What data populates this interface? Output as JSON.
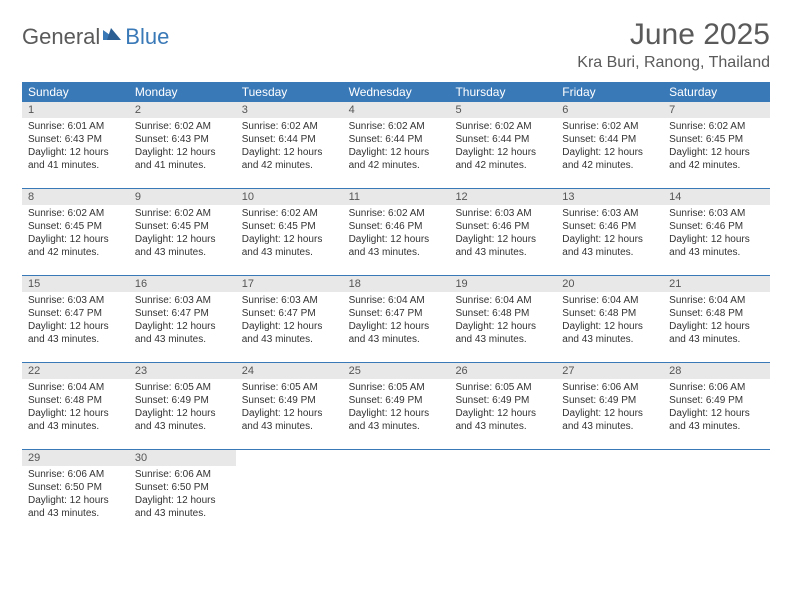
{
  "logo": {
    "text1": "General",
    "text2": "Blue"
  },
  "title": "June 2025",
  "location": "Kra Buri, Ranong, Thailand",
  "colors": {
    "header_bg": "#3a79b7",
    "header_text": "#ffffff",
    "daynum_bg": "#e8e8e8",
    "daynum_text": "#555555",
    "body_text": "#333333",
    "title_text": "#5a5a5a",
    "row_border": "#3a79b7",
    "page_bg": "#ffffff"
  },
  "typography": {
    "title_fontsize": 30,
    "location_fontsize": 16,
    "weekday_fontsize": 12,
    "daynum_fontsize": 11,
    "body_fontsize": 10
  },
  "weekdays": [
    "Sunday",
    "Monday",
    "Tuesday",
    "Wednesday",
    "Thursday",
    "Friday",
    "Saturday"
  ],
  "weeks": [
    [
      {
        "n": "1",
        "sunrise": "6:01 AM",
        "sunset": "6:43 PM",
        "day_h": "12",
        "day_m": "41"
      },
      {
        "n": "2",
        "sunrise": "6:02 AM",
        "sunset": "6:43 PM",
        "day_h": "12",
        "day_m": "41"
      },
      {
        "n": "3",
        "sunrise": "6:02 AM",
        "sunset": "6:44 PM",
        "day_h": "12",
        "day_m": "42"
      },
      {
        "n": "4",
        "sunrise": "6:02 AM",
        "sunset": "6:44 PM",
        "day_h": "12",
        "day_m": "42"
      },
      {
        "n": "5",
        "sunrise": "6:02 AM",
        "sunset": "6:44 PM",
        "day_h": "12",
        "day_m": "42"
      },
      {
        "n": "6",
        "sunrise": "6:02 AM",
        "sunset": "6:44 PM",
        "day_h": "12",
        "day_m": "42"
      },
      {
        "n": "7",
        "sunrise": "6:02 AM",
        "sunset": "6:45 PM",
        "day_h": "12",
        "day_m": "42"
      }
    ],
    [
      {
        "n": "8",
        "sunrise": "6:02 AM",
        "sunset": "6:45 PM",
        "day_h": "12",
        "day_m": "42"
      },
      {
        "n": "9",
        "sunrise": "6:02 AM",
        "sunset": "6:45 PM",
        "day_h": "12",
        "day_m": "43"
      },
      {
        "n": "10",
        "sunrise": "6:02 AM",
        "sunset": "6:45 PM",
        "day_h": "12",
        "day_m": "43"
      },
      {
        "n": "11",
        "sunrise": "6:02 AM",
        "sunset": "6:46 PM",
        "day_h": "12",
        "day_m": "43"
      },
      {
        "n": "12",
        "sunrise": "6:03 AM",
        "sunset": "6:46 PM",
        "day_h": "12",
        "day_m": "43"
      },
      {
        "n": "13",
        "sunrise": "6:03 AM",
        "sunset": "6:46 PM",
        "day_h": "12",
        "day_m": "43"
      },
      {
        "n": "14",
        "sunrise": "6:03 AM",
        "sunset": "6:46 PM",
        "day_h": "12",
        "day_m": "43"
      }
    ],
    [
      {
        "n": "15",
        "sunrise": "6:03 AM",
        "sunset": "6:47 PM",
        "day_h": "12",
        "day_m": "43"
      },
      {
        "n": "16",
        "sunrise": "6:03 AM",
        "sunset": "6:47 PM",
        "day_h": "12",
        "day_m": "43"
      },
      {
        "n": "17",
        "sunrise": "6:03 AM",
        "sunset": "6:47 PM",
        "day_h": "12",
        "day_m": "43"
      },
      {
        "n": "18",
        "sunrise": "6:04 AM",
        "sunset": "6:47 PM",
        "day_h": "12",
        "day_m": "43"
      },
      {
        "n": "19",
        "sunrise": "6:04 AM",
        "sunset": "6:48 PM",
        "day_h": "12",
        "day_m": "43"
      },
      {
        "n": "20",
        "sunrise": "6:04 AM",
        "sunset": "6:48 PM",
        "day_h": "12",
        "day_m": "43"
      },
      {
        "n": "21",
        "sunrise": "6:04 AM",
        "sunset": "6:48 PM",
        "day_h": "12",
        "day_m": "43"
      }
    ],
    [
      {
        "n": "22",
        "sunrise": "6:04 AM",
        "sunset": "6:48 PM",
        "day_h": "12",
        "day_m": "43"
      },
      {
        "n": "23",
        "sunrise": "6:05 AM",
        "sunset": "6:49 PM",
        "day_h": "12",
        "day_m": "43"
      },
      {
        "n": "24",
        "sunrise": "6:05 AM",
        "sunset": "6:49 PM",
        "day_h": "12",
        "day_m": "43"
      },
      {
        "n": "25",
        "sunrise": "6:05 AM",
        "sunset": "6:49 PM",
        "day_h": "12",
        "day_m": "43"
      },
      {
        "n": "26",
        "sunrise": "6:05 AM",
        "sunset": "6:49 PM",
        "day_h": "12",
        "day_m": "43"
      },
      {
        "n": "27",
        "sunrise": "6:06 AM",
        "sunset": "6:49 PM",
        "day_h": "12",
        "day_m": "43"
      },
      {
        "n": "28",
        "sunrise": "6:06 AM",
        "sunset": "6:49 PM",
        "day_h": "12",
        "day_m": "43"
      }
    ],
    [
      {
        "n": "29",
        "sunrise": "6:06 AM",
        "sunset": "6:50 PM",
        "day_h": "12",
        "day_m": "43"
      },
      {
        "n": "30",
        "sunrise": "6:06 AM",
        "sunset": "6:50 PM",
        "day_h": "12",
        "day_m": "43"
      },
      null,
      null,
      null,
      null,
      null
    ]
  ]
}
